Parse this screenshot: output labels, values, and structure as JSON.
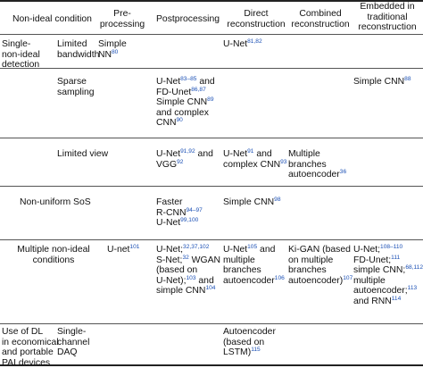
{
  "header": {
    "condition": "Non-ideal condition",
    "preprocessing": [
      "Pre-",
      "processing"
    ],
    "postprocessing": "Postprocessing",
    "direct": [
      "Direct",
      "reconstruction"
    ],
    "combined": [
      "Combined",
      "reconstruction"
    ],
    "embedded": [
      "Embedded in",
      "traditional",
      "reconstruction"
    ]
  },
  "rows": {
    "single": {
      "group": [
        "Single-",
        "non-ideal",
        "detection"
      ],
      "limited_bandwidth": {
        "label": [
          "Limited",
          "bandwidth"
        ],
        "pre_text": "Simple",
        "pre_text2": "NN",
        "pre_ref": "80",
        "direct_text": "U-Net",
        "direct_ref": "81,82"
      },
      "sparse_sampling": {
        "label": [
          "Sparse",
          "sampling"
        ],
        "post_1": "U-Net",
        "post_1_ref": "83–85",
        "post_1_tail": " and",
        "post_2": "FD-Unet",
        "post_2_ref": "86,87",
        "post_3": "Simple CNN",
        "post_3_ref": "89",
        "post_4": "and complex",
        "post_5": "CNN",
        "post_5_ref": "90",
        "embedded_text": "Simple CNN",
        "embedded_ref": "88"
      },
      "limited_view": {
        "label": "Limited view",
        "post_1": "U-Net",
        "post_1_ref": "91,92",
        "post_1_tail": " and",
        "post_2": "VGG",
        "post_2_ref": "92",
        "direct_1": "U-Net",
        "direct_1_ref": "91",
        "direct_1_tail": " and",
        "direct_2": "complex CNN",
        "direct_2_ref": "93",
        "combined_1": "Multiple",
        "combined_2": "branches",
        "combined_3": "autoencoder",
        "combined_3_ref": "36"
      }
    },
    "sos": {
      "label": "Non-uniform SoS",
      "post_1": "Faster",
      "post_2": "R-CNN",
      "post_2_ref": "94–97",
      "post_3": "U-Net",
      "post_3_ref": "99,100",
      "direct_text": "Simple CNN",
      "direct_ref": "98"
    },
    "multiple": {
      "label": [
        "Multiple non-ideal",
        "conditions"
      ],
      "pre_text": "U-net",
      "pre_ref": "101",
      "post_1": "U-Net;",
      "post_1_ref": "32,37,102",
      "post_2": "S-Net;",
      "post_2_ref": "32",
      "post_2_tail": " WGAN",
      "post_3": "(based on",
      "post_4": "U-Net);",
      "post_4_ref": "103",
      "post_4_tail": " and",
      "post_5": "simple CNN",
      "post_5_ref": "104",
      "direct_1": "U-Net",
      "direct_1_ref": "105",
      "direct_1_tail": " and",
      "direct_2": "multiple",
      "direct_3": "branches",
      "direct_4": "autoencoder",
      "direct_4_ref": "106",
      "combined_1": "Ki-GAN (based",
      "combined_2": "on multiple",
      "combined_3": "branches",
      "combined_4": "autoencoder)",
      "combined_4_ref": "107",
      "embedded_1": "U-Net;",
      "embedded_1_ref": "108–110",
      "embedded_2": "FD-Unet;",
      "embedded_2_ref": "111",
      "embedded_3": "simple CNN;",
      "embedded_3_ref": "68,112",
      "embedded_4": "multiple",
      "embedded_5": "autoencoder;",
      "embedded_5_ref": "113",
      "embedded_6": "and RNN",
      "embedded_6_ref": "114"
    },
    "economical": {
      "group": [
        "Use of DL",
        "in economical",
        "and portable",
        "PAI devices"
      ],
      "label": [
        "Single-",
        "channel",
        "DAQ"
      ],
      "direct_1": "Autoencoder",
      "direct_2": "(based on",
      "direct_3": "LSTM)",
      "direct_3_ref": "115"
    }
  }
}
